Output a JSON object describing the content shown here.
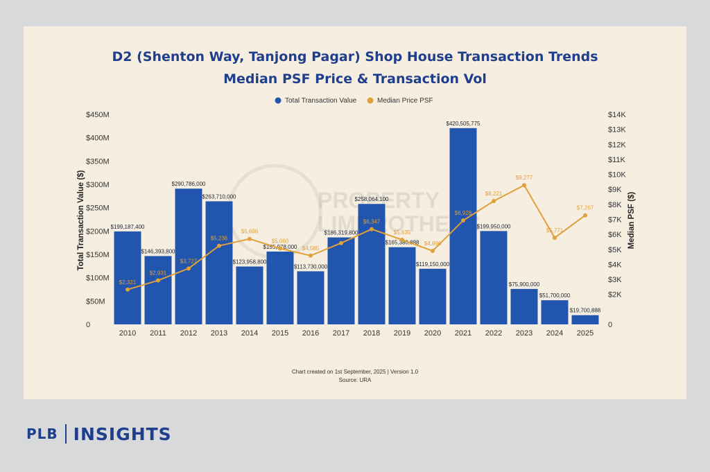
{
  "chart_data": {
    "type": "bar",
    "title_line1": "D2 (Shenton Way, Tanjong Pagar) Shop House Transaction Trends",
    "title_line2": "Median PSF Price & Transaction Vol",
    "categories": [
      "2010",
      "2011",
      "2012",
      "2013",
      "2014",
      "2015",
      "2016",
      "2017",
      "2018",
      "2019",
      "2020",
      "2021",
      "2022",
      "2023",
      "2024",
      "2025"
    ],
    "series": [
      {
        "name": "Total Transaction Value",
        "type": "bar",
        "axis": "left",
        "color": "#2255ad",
        "values": [
          199187400,
          146393800,
          290786000,
          263710000,
          123958800,
          155978000,
          113730000,
          186319800,
          258064100,
          165380888,
          119150000,
          420505775,
          199950000,
          75900000,
          51700000,
          19700888
        ],
        "labels": [
          "$199,187,400",
          "$146,393,800",
          "$290,786,000",
          "$263,710,000",
          "$123,958,800",
          "$155,978,000",
          "$113,730,000",
          "$186,319,800",
          "$258,064,100",
          "$165,380,888",
          "$119,150,000",
          "$420,505,775",
          "$199,950,000",
          "$75,900,000",
          "$51,700,000",
          "$19,700,888"
        ]
      },
      {
        "name": "Median Price PSF",
        "type": "line",
        "axis": "right",
        "color": "#e0a03a",
        "values": [
          2321,
          2931,
          3727,
          5236,
          5696,
          5060,
          4585,
          5418,
          6347,
          5635,
          4896,
          6928,
          8221,
          9277,
          5771,
          7267
        ],
        "labels": [
          "$2,321",
          "$2,931",
          "$3,727",
          "$5,236",
          "$5,696",
          "$5,060",
          "$4,585",
          "",
          "$6,347",
          "$5,635",
          "$4,896",
          "$6,928",
          "$8,221",
          "$9,277",
          "$5,771",
          "$7,267"
        ]
      }
    ],
    "left_axis": {
      "label": "Total Transaction Value ($)",
      "range": [
        0,
        450000000
      ],
      "ticks": [
        0,
        50000000,
        100000000,
        150000000,
        200000000,
        250000000,
        300000000,
        350000000,
        400000000,
        450000000
      ],
      "tick_labels": [
        "0",
        "$50M",
        "$100M",
        "$150M",
        "$200M",
        "$250M",
        "$300M",
        "$350M",
        "$400M",
        "$450M"
      ]
    },
    "right_axis": {
      "label": "Median PSF ($)",
      "range": [
        0,
        14000
      ],
      "ticks": [
        0,
        2000,
        3000,
        4000,
        5000,
        6000,
        7000,
        8000,
        9000,
        10000,
        11000,
        12000,
        13000,
        14000
      ],
      "tick_labels": [
        "0",
        "$2K",
        "$3K",
        "$4K",
        "$5K",
        "$6K",
        "$7K",
        "$8K",
        "$9K",
        "$10K",
        "$11K",
        "$12K",
        "$13K",
        "$14K"
      ]
    },
    "legend_position": "top-center",
    "grid": false,
    "footer_line1": "Chart created on 1st September, 2025 | Version 1.0",
    "footer_line2": "Source: URA",
    "watermark_line1": "PROPERTY",
    "watermark_line2": "LIMBROTHERS"
  },
  "brand": {
    "left": "PLB",
    "right": "INSIGHTS"
  },
  "colors": {
    "title": "#1f3e8c",
    "panel_background": "#f6efe1",
    "page_background": "#d7d9db"
  }
}
